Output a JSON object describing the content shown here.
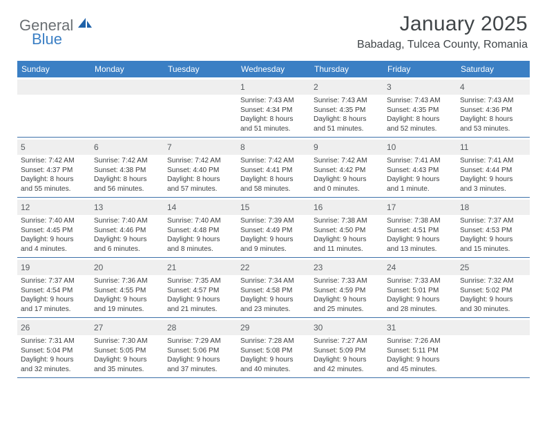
{
  "brand": {
    "part1": "General",
    "part2": "Blue"
  },
  "title": "January 2025",
  "location": "Babadag, Tulcea County, Romania",
  "colors": {
    "header_bg": "#3b7fc4",
    "header_text": "#ffffff",
    "daynum_bg": "#efefef",
    "body_text": "#3a3d3f",
    "border": "#3b6fa8",
    "brand_gray": "#6a6f73",
    "brand_blue": "#3b7fc4"
  },
  "day_names": [
    "Sunday",
    "Monday",
    "Tuesday",
    "Wednesday",
    "Thursday",
    "Friday",
    "Saturday"
  ],
  "weeks": [
    [
      {
        "n": "",
        "sr": "",
        "ss": "",
        "dl": ""
      },
      {
        "n": "",
        "sr": "",
        "ss": "",
        "dl": ""
      },
      {
        "n": "",
        "sr": "",
        "ss": "",
        "dl": ""
      },
      {
        "n": "1",
        "sr": "7:43 AM",
        "ss": "4:34 PM",
        "dl": "8 hours and 51 minutes."
      },
      {
        "n": "2",
        "sr": "7:43 AM",
        "ss": "4:35 PM",
        "dl": "8 hours and 51 minutes."
      },
      {
        "n": "3",
        "sr": "7:43 AM",
        "ss": "4:35 PM",
        "dl": "8 hours and 52 minutes."
      },
      {
        "n": "4",
        "sr": "7:43 AM",
        "ss": "4:36 PM",
        "dl": "8 hours and 53 minutes."
      }
    ],
    [
      {
        "n": "5",
        "sr": "7:42 AM",
        "ss": "4:37 PM",
        "dl": "8 hours and 55 minutes."
      },
      {
        "n": "6",
        "sr": "7:42 AM",
        "ss": "4:38 PM",
        "dl": "8 hours and 56 minutes."
      },
      {
        "n": "7",
        "sr": "7:42 AM",
        "ss": "4:40 PM",
        "dl": "8 hours and 57 minutes."
      },
      {
        "n": "8",
        "sr": "7:42 AM",
        "ss": "4:41 PM",
        "dl": "8 hours and 58 minutes."
      },
      {
        "n": "9",
        "sr": "7:42 AM",
        "ss": "4:42 PM",
        "dl": "9 hours and 0 minutes."
      },
      {
        "n": "10",
        "sr": "7:41 AM",
        "ss": "4:43 PM",
        "dl": "9 hours and 1 minute."
      },
      {
        "n": "11",
        "sr": "7:41 AM",
        "ss": "4:44 PM",
        "dl": "9 hours and 3 minutes."
      }
    ],
    [
      {
        "n": "12",
        "sr": "7:40 AM",
        "ss": "4:45 PM",
        "dl": "9 hours and 4 minutes."
      },
      {
        "n": "13",
        "sr": "7:40 AM",
        "ss": "4:46 PM",
        "dl": "9 hours and 6 minutes."
      },
      {
        "n": "14",
        "sr": "7:40 AM",
        "ss": "4:48 PM",
        "dl": "9 hours and 8 minutes."
      },
      {
        "n": "15",
        "sr": "7:39 AM",
        "ss": "4:49 PM",
        "dl": "9 hours and 9 minutes."
      },
      {
        "n": "16",
        "sr": "7:38 AM",
        "ss": "4:50 PM",
        "dl": "9 hours and 11 minutes."
      },
      {
        "n": "17",
        "sr": "7:38 AM",
        "ss": "4:51 PM",
        "dl": "9 hours and 13 minutes."
      },
      {
        "n": "18",
        "sr": "7:37 AM",
        "ss": "4:53 PM",
        "dl": "9 hours and 15 minutes."
      }
    ],
    [
      {
        "n": "19",
        "sr": "7:37 AM",
        "ss": "4:54 PM",
        "dl": "9 hours and 17 minutes."
      },
      {
        "n": "20",
        "sr": "7:36 AM",
        "ss": "4:55 PM",
        "dl": "9 hours and 19 minutes."
      },
      {
        "n": "21",
        "sr": "7:35 AM",
        "ss": "4:57 PM",
        "dl": "9 hours and 21 minutes."
      },
      {
        "n": "22",
        "sr": "7:34 AM",
        "ss": "4:58 PM",
        "dl": "9 hours and 23 minutes."
      },
      {
        "n": "23",
        "sr": "7:33 AM",
        "ss": "4:59 PM",
        "dl": "9 hours and 25 minutes."
      },
      {
        "n": "24",
        "sr": "7:33 AM",
        "ss": "5:01 PM",
        "dl": "9 hours and 28 minutes."
      },
      {
        "n": "25",
        "sr": "7:32 AM",
        "ss": "5:02 PM",
        "dl": "9 hours and 30 minutes."
      }
    ],
    [
      {
        "n": "26",
        "sr": "7:31 AM",
        "ss": "5:04 PM",
        "dl": "9 hours and 32 minutes."
      },
      {
        "n": "27",
        "sr": "7:30 AM",
        "ss": "5:05 PM",
        "dl": "9 hours and 35 minutes."
      },
      {
        "n": "28",
        "sr": "7:29 AM",
        "ss": "5:06 PM",
        "dl": "9 hours and 37 minutes."
      },
      {
        "n": "29",
        "sr": "7:28 AM",
        "ss": "5:08 PM",
        "dl": "9 hours and 40 minutes."
      },
      {
        "n": "30",
        "sr": "7:27 AM",
        "ss": "5:09 PM",
        "dl": "9 hours and 42 minutes."
      },
      {
        "n": "31",
        "sr": "7:26 AM",
        "ss": "5:11 PM",
        "dl": "9 hours and 45 minutes."
      },
      {
        "n": "",
        "sr": "",
        "ss": "",
        "dl": ""
      }
    ]
  ],
  "labels": {
    "sunrise": "Sunrise:",
    "sunset": "Sunset:",
    "daylight": "Daylight:"
  }
}
